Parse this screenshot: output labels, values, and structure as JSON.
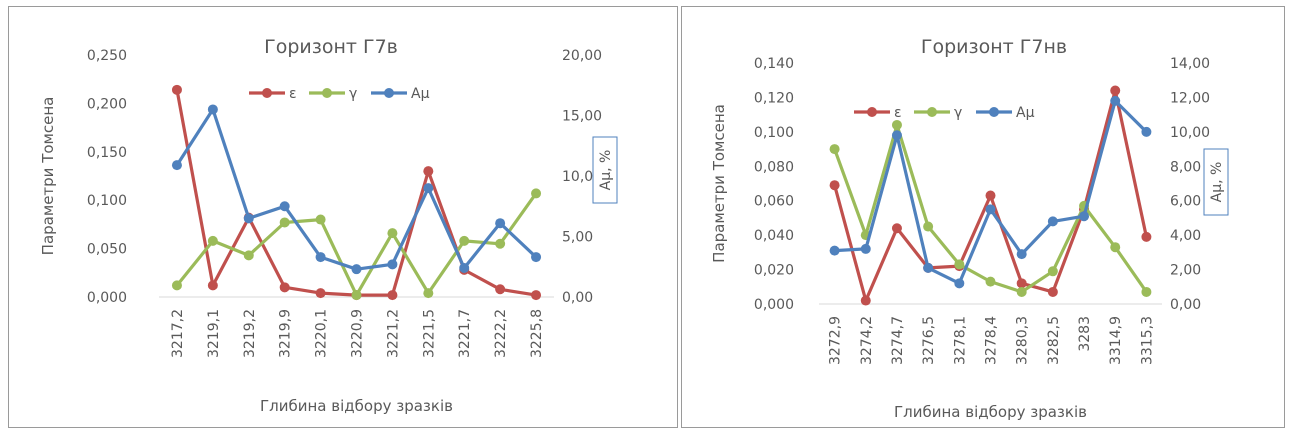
{
  "colors": {
    "epsilon": "#C0504D",
    "gamma": "#9BBB59",
    "amu": "#4F81BD",
    "axis_text": "#595959",
    "grid": "#d9d9d9",
    "box_border": "#4F81BD"
  },
  "chart_data": [
    {
      "type": "line",
      "title": "Горизонт Г7в",
      "xlabel": "Глибина відбору зразків",
      "ylabel": "Параметри Томсена",
      "y2label": "Аμ, %",
      "categories": [
        "3217,2",
        "3219,1",
        "3219,2",
        "3219,9",
        "3220,1",
        "3220,9",
        "3221,2",
        "3221,5",
        "3221,7",
        "3222,2",
        "3225,8"
      ],
      "ylim": [
        0,
        0.25
      ],
      "y_ticks": [
        "0,000",
        "0,050",
        "0,100",
        "0,150",
        "0,200",
        "0,250"
      ],
      "y2lim": [
        0,
        20
      ],
      "y2_ticks": [
        "0,00",
        "5,00",
        "10,00",
        "15,00",
        "20,00"
      ],
      "grid": false,
      "legend": "top-center",
      "series": [
        {
          "name": "ε",
          "axis": "left",
          "color_key": "epsilon",
          "values": [
            0.214,
            0.012,
            0.082,
            0.01,
            0.004,
            0.002,
            0.002,
            0.13,
            0.028,
            0.008,
            0.002
          ]
        },
        {
          "name": "γ",
          "axis": "left",
          "color_key": "gamma",
          "values": [
            0.012,
            0.058,
            0.043,
            0.077,
            0.08,
            0.002,
            0.066,
            0.004,
            0.058,
            0.055,
            0.107
          ]
        },
        {
          "name": "Аμ",
          "axis": "right",
          "color_key": "amu",
          "values": [
            10.9,
            15.5,
            6.5,
            7.5,
            3.3,
            2.3,
            2.7,
            9.0,
            2.4,
            6.1,
            3.3
          ]
        }
      ]
    },
    {
      "type": "line",
      "title": "Горизонт Г7нв",
      "xlabel": "Глибина відбору зразків",
      "ylabel": "Параметри Томсена",
      "y2label": "Аμ, %",
      "categories": [
        "3272,9",
        "3274,2",
        "3274,7",
        "3276,5",
        "3278,1",
        "3278,4",
        "3280,3",
        "3282,5",
        "3283",
        "3314,9",
        "3315,3"
      ],
      "ylim": [
        0,
        0.14
      ],
      "y_ticks": [
        "0,000",
        "0,020",
        "0,040",
        "0,060",
        "0,080",
        "0,100",
        "0,120",
        "0,140"
      ],
      "y2lim": [
        0,
        14
      ],
      "y2_ticks": [
        "0,00",
        "2,00",
        "4,00",
        "6,00",
        "8,00",
        "10,00",
        "12,00",
        "14,00"
      ],
      "grid": false,
      "legend": "top-center",
      "series": [
        {
          "name": "ε",
          "axis": "left",
          "color_key": "epsilon",
          "values": [
            0.069,
            0.002,
            0.044,
            0.021,
            0.022,
            0.063,
            0.012,
            0.007,
            0.055,
            0.124,
            0.039
          ]
        },
        {
          "name": "γ",
          "axis": "left",
          "color_key": "gamma",
          "values": [
            0.09,
            0.04,
            0.104,
            0.045,
            0.023,
            0.013,
            0.007,
            0.019,
            0.057,
            0.033,
            0.007
          ]
        },
        {
          "name": "Аμ",
          "axis": "right",
          "color_key": "amu",
          "values": [
            3.1,
            3.2,
            9.8,
            2.1,
            1.2,
            5.5,
            2.9,
            4.8,
            5.1,
            11.8,
            10.0
          ]
        }
      ]
    }
  ]
}
